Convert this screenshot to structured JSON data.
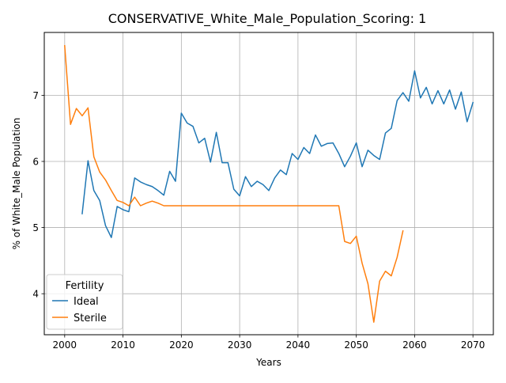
{
  "chart_data": {
    "type": "line",
    "title": "CONSERVATIVE_White_Male_Population_Scoring: 1",
    "xlabel": "Years",
    "ylabel": "% of White_Male Population",
    "xlim": [
      1996.5,
      2073.5
    ],
    "ylim": [
      3.38,
      7.95
    ],
    "xticks": [
      2000,
      2010,
      2020,
      2030,
      2040,
      2050,
      2060,
      2070
    ],
    "yticks": [
      4,
      5,
      6,
      7
    ],
    "grid": true,
    "legend": {
      "title": "Fertility",
      "position": "lower-left"
    },
    "series": [
      {
        "name": "Ideal",
        "color": "#1f77b4",
        "x": [
          2003,
          2004,
          2005,
          2006,
          2007,
          2008,
          2009,
          2010,
          2011,
          2012,
          2013,
          2014,
          2015,
          2016,
          2017,
          2018,
          2019,
          2020,
          2021,
          2022,
          2023,
          2024,
          2025,
          2026,
          2027,
          2028,
          2029,
          2030,
          2031,
          2032,
          2033,
          2034,
          2035,
          2036,
          2037,
          2038,
          2039,
          2040,
          2041,
          2042,
          2043,
          2044,
          2045,
          2046,
          2047,
          2048,
          2049,
          2050,
          2051,
          2052,
          2053,
          2054,
          2055,
          2056,
          2057,
          2058,
          2059,
          2060,
          2061,
          2062,
          2063,
          2064,
          2065,
          2066,
          2067,
          2068,
          2069,
          2070
        ],
        "y": [
          5.21,
          6.01,
          5.56,
          5.41,
          5.03,
          4.85,
          5.32,
          5.27,
          5.24,
          5.75,
          5.69,
          5.65,
          5.62,
          5.56,
          5.49,
          5.85,
          5.7,
          6.73,
          6.58,
          6.53,
          6.28,
          6.35,
          5.99,
          6.44,
          5.98,
          5.98,
          5.58,
          5.48,
          5.77,
          5.62,
          5.7,
          5.65,
          5.56,
          5.75,
          5.87,
          5.8,
          6.12,
          6.03,
          6.21,
          6.12,
          6.4,
          6.23,
          6.27,
          6.28,
          6.12,
          5.92,
          6.08,
          6.28,
          5.92,
          6.17,
          6.09,
          6.03,
          6.43,
          6.5,
          6.92,
          7.04,
          6.91,
          7.37,
          6.96,
          7.12,
          6.87,
          7.07,
          6.87,
          7.08,
          6.79,
          7.05,
          6.6,
          6.89
        ]
      },
      {
        "name": "Sterile",
        "color": "#ff7f0e",
        "x": [
          2000,
          2001,
          2002,
          2003,
          2004,
          2005,
          2006,
          2007,
          2008,
          2009,
          2010,
          2011,
          2012,
          2013,
          2014,
          2015,
          2016,
          2017,
          2018,
          2019,
          2020,
          2021,
          2022,
          2023,
          2024,
          2025,
          2026,
          2027,
          2028,
          2029,
          2030,
          2031,
          2032,
          2033,
          2034,
          2035,
          2036,
          2037,
          2038,
          2039,
          2040,
          2041,
          2042,
          2043,
          2044,
          2045,
          2046,
          2047,
          2048,
          2049,
          2050,
          2051,
          2052,
          2053,
          2054,
          2055,
          2056,
          2057,
          2058
        ],
        "y": [
          7.75,
          6.56,
          6.8,
          6.69,
          6.81,
          6.07,
          5.84,
          5.72,
          5.56,
          5.41,
          5.38,
          5.33,
          5.46,
          5.33,
          5.37,
          5.4,
          5.37,
          5.33,
          5.33,
          5.33,
          5.33,
          5.33,
          5.33,
          5.33,
          5.33,
          5.33,
          5.33,
          5.33,
          5.33,
          5.33,
          5.33,
          5.33,
          5.33,
          5.33,
          5.33,
          5.33,
          5.33,
          5.33,
          5.33,
          5.33,
          5.33,
          5.33,
          5.33,
          5.33,
          5.33,
          5.33,
          5.33,
          5.33,
          4.79,
          4.76,
          4.87,
          4.46,
          4.15,
          3.57,
          4.19,
          4.34,
          4.27,
          4.55,
          4.95
        ]
      }
    ]
  }
}
